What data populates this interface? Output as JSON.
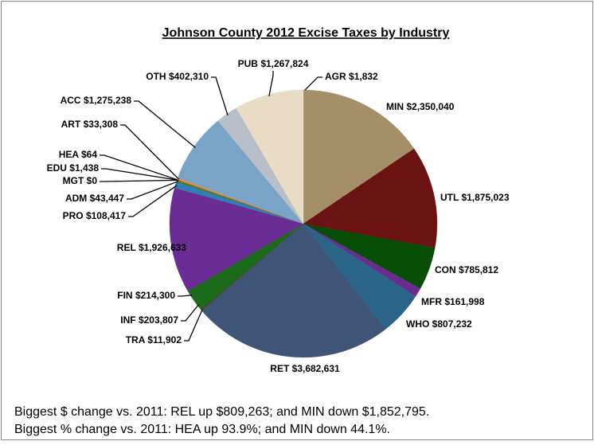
{
  "chart_data": {
    "type": "pie",
    "title": "Johnson County 2012 Excise Taxes by Industry",
    "categories": [
      "AGR",
      "MIN",
      "UTL",
      "CON",
      "MFR",
      "WHO",
      "RET",
      "TRA",
      "INF",
      "FIN",
      "REL",
      "PRO",
      "ADM",
      "MGT",
      "EDU",
      "HEA",
      "ART",
      "ACC",
      "OTH",
      "PUB"
    ],
    "values": [
      1832,
      2350040,
      1875023,
      785812,
      161998,
      807232,
      3682631,
      11902,
      203807,
      214300,
      1926633,
      108417,
      43447,
      0,
      1438,
      64,
      33308,
      1275238,
      402310,
      1267824
    ],
    "value_labels": [
      "$1,832",
      "$2,350,040",
      "$1,875,023",
      "$785,812",
      "$161,998",
      "$807,232",
      "$3,682,631",
      "$11,902",
      "$203,807",
      "$214,300",
      "$1,926,633",
      "$108,417",
      "$43,447",
      "$0",
      "$1,438",
      "$64",
      "$33,308",
      "$1,275,238",
      "$402,310",
      "$1,267,824"
    ],
    "colors": [
      "#c8b58a",
      "#a58f68",
      "#6b1212",
      "#064d06",
      "#6a2d8f",
      "#2a6488",
      "#3e5577",
      "#7b1a1a",
      "#1a6a1a",
      "#1a6a1a",
      "#6a2d95",
      "#2f7eb8",
      "#4a7a3a",
      "#999999",
      "#e0a050",
      "#a03030",
      "#e88a3a",
      "#7aa3c8",
      "#b8bfc8",
      "#e8dcc4"
    ],
    "notes": [
      "Biggest $ change vs. 2011: REL up $809,263; and MIN down $1,852,795.",
      "Biggest % change vs. 2011: HEA up 93.9%; and MIN down 44.1%."
    ]
  }
}
